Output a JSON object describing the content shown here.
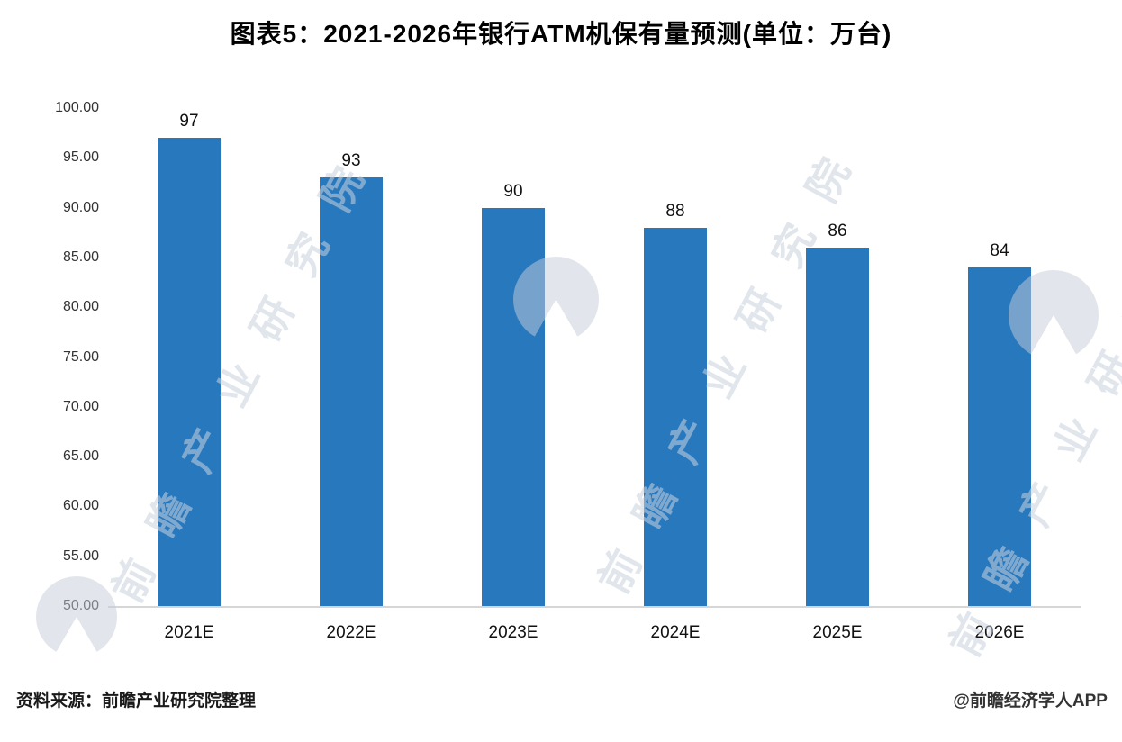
{
  "chart_data": {
    "type": "bar",
    "title": "图表5：2021-2026年银行ATM机保有量预测(单位：万台)",
    "categories": [
      "2021E",
      "2022E",
      "2023E",
      "2024E",
      "2025E",
      "2026E"
    ],
    "values": [
      97,
      93,
      90,
      88,
      86,
      84
    ],
    "xlabel": "",
    "ylabel": "",
    "ylim": [
      50,
      100
    ],
    "yticks": [
      "100.00",
      "95.00",
      "90.00",
      "85.00",
      "80.00",
      "75.00",
      "70.00",
      "65.00",
      "60.00",
      "55.00",
      "50.00"
    ],
    "bar_color": "#2878BE",
    "grid": false,
    "legend": "none"
  },
  "footer": {
    "source": "资料来源：前瞻产业研究院整理",
    "credit": "@前瞻经济学人APP"
  },
  "watermark": {
    "text": "前瞻产业研究院"
  }
}
